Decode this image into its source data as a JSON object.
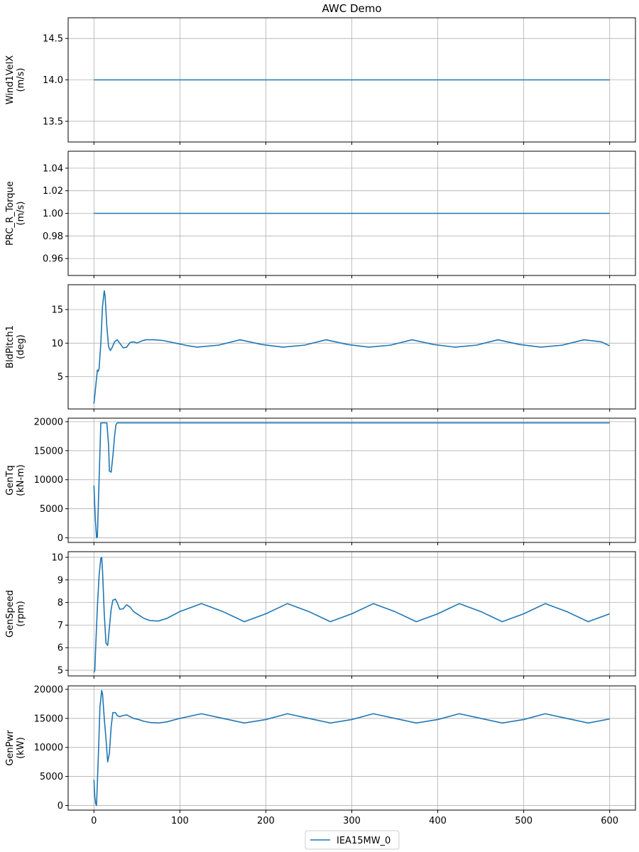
{
  "chart_data": {
    "type": "line",
    "title": "AWC Demo",
    "series_color": "#1f77b4",
    "legend": {
      "entries": [
        "IEA15MW_0"
      ],
      "placement": "bottom-center"
    },
    "grid": true,
    "shared_x": {
      "xlim": [
        -30,
        630
      ],
      "ticks": [
        0,
        100,
        200,
        300,
        400,
        500,
        600
      ],
      "tick_labels": [
        "0",
        "100",
        "200",
        "300",
        "400",
        "500",
        "600"
      ]
    },
    "subplots": [
      {
        "ylabel_lines": [
          "Wind1VelX",
          "(m/s)"
        ],
        "ylim": [
          13.25,
          14.75
        ],
        "yticks": [
          13.5,
          14.0,
          14.5
        ],
        "ytick_labels": [
          "13.5",
          "14.0",
          "14.5"
        ],
        "series": [
          {
            "name": "IEA15MW_0",
            "x": [
              0,
              600
            ],
            "y": [
              14.0,
              14.0
            ]
          }
        ]
      },
      {
        "ylabel_lines": [
          "PRC_R_Torque",
          "(m/s)"
        ],
        "ylim": [
          0.945,
          1.055
        ],
        "yticks": [
          0.96,
          0.98,
          1.0,
          1.02,
          1.04
        ],
        "ytick_labels": [
          "0.96",
          "0.98",
          "1.00",
          "1.02",
          "1.04"
        ],
        "series": [
          {
            "name": "IEA15MW_0",
            "x": [
              0,
              600
            ],
            "y": [
              1.0,
              1.0
            ]
          }
        ]
      },
      {
        "ylabel_lines": [
          "BldPitch1",
          "(deg)"
        ],
        "ylim": [
          0.2,
          18.7
        ],
        "yticks": [
          5,
          10,
          15
        ],
        "ytick_labels": [
          "5",
          "10",
          "15"
        ],
        "series": [
          {
            "name": "IEA15MW_0",
            "x": [
              0,
              2,
              4,
              5,
              6,
              8,
              10,
              12,
              13,
              15,
              17,
              19,
              21,
              24,
              27,
              30,
              34,
              38,
              42,
              46,
              50,
              55,
              60,
              65,
              70,
              80,
              95,
              110,
              120,
              145,
              170,
              195,
              220,
              245,
              270,
              295,
              320,
              345,
              370,
              395,
              420,
              445,
              470,
              495,
              520,
              545,
              570,
              590,
              600
            ],
            "y": [
              1.0,
              3.5,
              6.0,
              5.8,
              6.2,
              10.0,
              15.5,
              17.8,
              17.0,
              12.5,
              9.5,
              8.9,
              9.3,
              10.2,
              10.5,
              10.0,
              9.3,
              9.4,
              10.1,
              10.2,
              10.0,
              10.3,
              10.5,
              10.5,
              10.5,
              10.4,
              10.0,
              9.6,
              9.4,
              9.7,
              10.5,
              9.8,
              9.4,
              9.7,
              10.5,
              9.8,
              9.4,
              9.7,
              10.5,
              9.8,
              9.4,
              9.7,
              10.5,
              9.8,
              9.4,
              9.7,
              10.5,
              10.2,
              9.6
            ]
          }
        ]
      },
      {
        "ylabel_lines": [
          "GenTq",
          "(kN-m)"
        ],
        "ylim": [
          -800,
          20600
        ],
        "yticks": [
          0,
          5000,
          10000,
          15000,
          20000
        ],
        "ytick_labels": [
          "0",
          "5000",
          "10000",
          "15000",
          "20000"
        ],
        "series": [
          {
            "name": "IEA15MW_0",
            "x": [
              0,
              1.5,
              3,
              4,
              6,
              8,
              9,
              12,
              15,
              17,
              18,
              20,
              22,
              24,
              25.5,
              27,
              100,
              200,
              300,
              400,
              500,
              600
            ],
            "y": [
              9000,
              3500,
              0,
              200,
              10000,
              19800,
              19800,
              19800,
              19800,
              16000,
              11500,
              11300,
              14000,
              17500,
              19400,
              19800,
              19800,
              19800,
              19800,
              19800,
              19800,
              19800
            ]
          }
        ]
      },
      {
        "ylabel_lines": [
          "GenSpeed",
          "(rpm)"
        ],
        "ylim": [
          4.75,
          10.25
        ],
        "yticks": [
          5,
          6,
          7,
          8,
          9,
          10
        ],
        "ytick_labels": [
          "5",
          "6",
          "7",
          "8",
          "9",
          "10"
        ],
        "series": [
          {
            "name": "IEA15MW_0",
            "x": [
              0,
              1,
              2,
              4,
              6,
              8,
              9,
              10,
              12,
              14,
              16,
              18,
              20,
              22,
              25,
              27,
              30,
              34,
              38,
              42,
              46,
              52,
              58,
              65,
              75,
              85,
              100,
              125,
              150,
              175,
              200,
              225,
              250,
              275,
              300,
              325,
              350,
              375,
              400,
              425,
              450,
              475,
              500,
              525,
              550,
              575,
              600
            ],
            "y": [
              4.9,
              5.0,
              6.0,
              7.8,
              9.2,
              9.95,
              10.0,
              9.4,
              7.5,
              6.2,
              6.1,
              6.9,
              7.7,
              8.1,
              8.15,
              8.0,
              7.7,
              7.72,
              7.9,
              7.8,
              7.6,
              7.45,
              7.3,
              7.2,
              7.18,
              7.3,
              7.6,
              7.95,
              7.6,
              7.15,
              7.5,
              7.95,
              7.6,
              7.15,
              7.5,
              7.95,
              7.6,
              7.15,
              7.5,
              7.95,
              7.6,
              7.15,
              7.5,
              7.95,
              7.6,
              7.15,
              7.5
            ]
          }
        ]
      },
      {
        "ylabel_lines": [
          "GenPwr",
          "(kW)"
        ],
        "ylim": [
          -800,
          20600
        ],
        "yticks": [
          0,
          5000,
          10000,
          15000,
          20000
        ],
        "ytick_labels": [
          "0",
          "5000",
          "10000",
          "15000",
          "20000"
        ],
        "series": [
          {
            "name": "IEA15MW_0",
            "x": [
              0,
              1,
              2,
              3,
              5,
              7,
              9,
              10,
              12,
              14,
              16,
              18,
              20,
              22,
              25,
              27,
              30,
              34,
              38,
              42,
              46,
              52,
              58,
              65,
              75,
              85,
              100,
              125,
              150,
              175,
              200,
              225,
              250,
              275,
              300,
              325,
              350,
              375,
              400,
              425,
              450,
              475,
              500,
              525,
              550,
              575,
              600
            ],
            "y": [
              4400,
              1500,
              300,
              0,
              8000,
              17000,
              19800,
              19200,
              15000,
              11500,
              7500,
              9000,
              13500,
              16000,
              16000,
              15500,
              15300,
              15500,
              15600,
              15300,
              15000,
              14800,
              14500,
              14300,
              14200,
              14400,
              15000,
              15800,
              15000,
              14200,
              14800,
              15800,
              15000,
              14200,
              14800,
              15800,
              15000,
              14200,
              14800,
              15800,
              15000,
              14200,
              14800,
              15800,
              15000,
              14200,
              14900
            ]
          }
        ]
      }
    ]
  }
}
